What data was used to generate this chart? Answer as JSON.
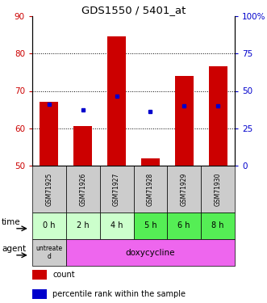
{
  "title": "GDS1550 / 5401_at",
  "samples": [
    "GSM71925",
    "GSM71926",
    "GSM71927",
    "GSM71928",
    "GSM71929",
    "GSM71930"
  ],
  "time_labels": [
    "0 h",
    "2 h",
    "4 h",
    "5 h",
    "6 h",
    "8 h"
  ],
  "bar_heights": [
    67,
    60.5,
    84.5,
    52,
    74,
    76.5
  ],
  "bar_bottom": 50,
  "blue_y": [
    66.5,
    65,
    68.5,
    64.5,
    66,
    66
  ],
  "ylim_left": [
    50,
    90
  ],
  "ylim_right": [
    0,
    100
  ],
  "yticks_left": [
    50,
    60,
    70,
    80,
    90
  ],
  "yticks_right": [
    0,
    25,
    50,
    75,
    100
  ],
  "yticklabels_right": [
    "0",
    "25",
    "50",
    "75",
    "100%"
  ],
  "bar_color": "#cc0000",
  "blue_color": "#0000cc",
  "left_tick_color": "#cc0000",
  "right_tick_color": "#0000cc",
  "time_row_colors": [
    "#ccffcc",
    "#ccffcc",
    "#ccffcc",
    "#55ee55",
    "#55ee55",
    "#55ee55"
  ],
  "bg_agent_untreated": "#cccccc",
  "bg_agent_doxy": "#ee66ee",
  "figsize": [
    3.31,
    3.75
  ],
  "dpi": 100
}
